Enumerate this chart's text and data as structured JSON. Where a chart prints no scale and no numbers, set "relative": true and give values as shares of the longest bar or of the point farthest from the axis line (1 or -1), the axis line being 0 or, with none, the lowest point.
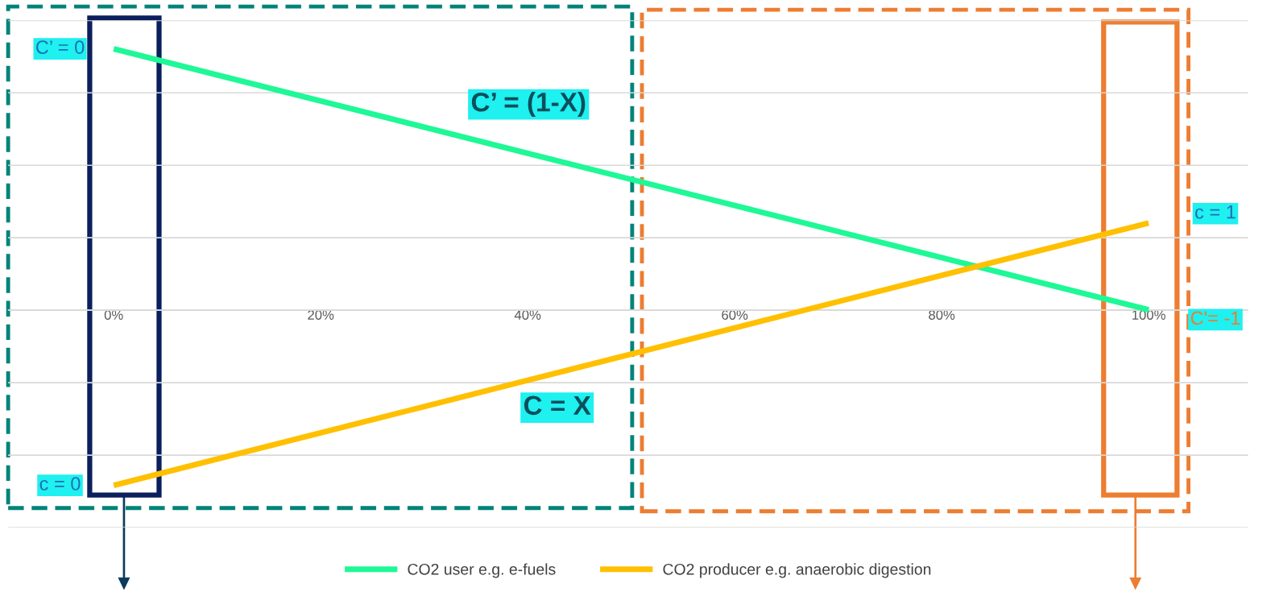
{
  "chart_data": {
    "type": "line",
    "relative": true,
    "categories": [
      "0%",
      "20%",
      "40%",
      "60%",
      "80%",
      "100%"
    ],
    "series": [
      {
        "name": "CO2 user e.g. e-fuels",
        "color": "#1ef896",
        "values": [
          1,
          0.8,
          0.6,
          0.4,
          0.2,
          0
        ]
      },
      {
        "name": "CO2 producer e.g. anaerobic digestion",
        "color": "#ffc000",
        "values": [
          -0.672,
          -0.471,
          -0.27,
          -0.069,
          0.132,
          0.333
        ]
      }
    ],
    "annotations": [
      {
        "text": "C’ = 0",
        "x": "0%",
        "y": 1
      },
      "C’ = (1-X)",
      "C = X",
      {
        "text": "c = 0",
        "x": "0%",
        "y": -0.672
      },
      "c = 1",
      "C'= -1"
    ],
    "grid": "y",
    "legend": "bottom",
    "marker": "none",
    "line_style": "solid"
  }
}
